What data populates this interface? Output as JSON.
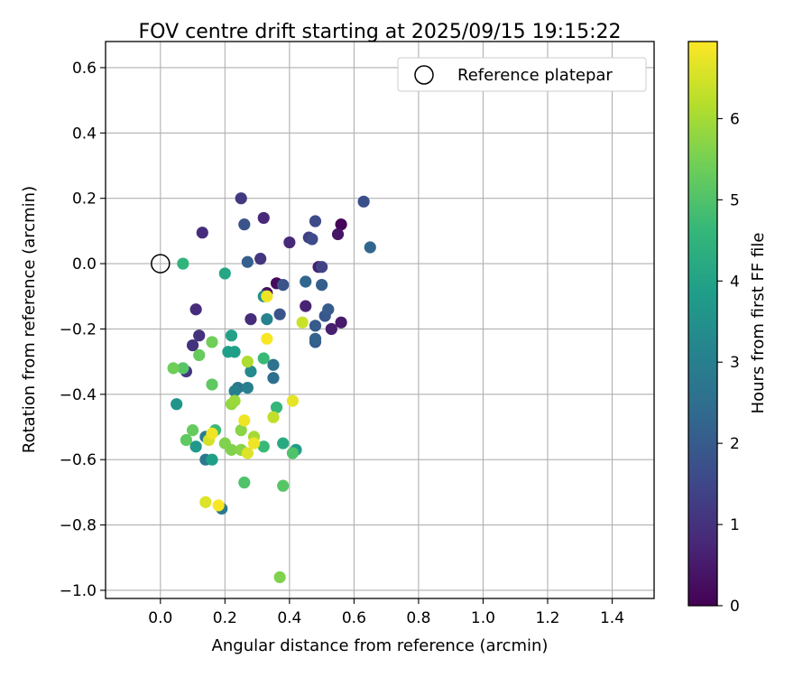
{
  "chart_data": {
    "type": "scatter",
    "title": "FOV centre drift starting at 2025/09/15 19:15:22",
    "xlabel": "Angular distance from reference (arcmin)",
    "ylabel": "Rotation from reference (arcmin)",
    "xlim": [
      -0.17,
      1.53
    ],
    "ylim": [
      -1.025,
      0.68
    ],
    "x_ticks": [
      0.0,
      0.2,
      0.4,
      0.6,
      0.8,
      1.0,
      1.2,
      1.4
    ],
    "x_tick_labels": [
      "0.0",
      "0.2",
      "0.4",
      "0.6",
      "0.8",
      "1.0",
      "1.2",
      "1.4"
    ],
    "y_ticks": [
      0.6,
      0.4,
      0.2,
      0.0,
      -0.2,
      -0.4,
      -0.6,
      -0.8,
      -1.0
    ],
    "y_tick_labels": [
      "0.6",
      "0.4",
      "0.2",
      "0.0",
      "−0.2",
      "−0.4",
      "−0.6",
      "−0.8",
      "−1.0"
    ],
    "grid": true,
    "legend": {
      "placement": "top-right",
      "entries": [
        "Reference platepar"
      ]
    },
    "reference_point": {
      "x": 0.0,
      "y": 0.0,
      "label": "Reference platepar"
    },
    "colorbar": {
      "label": "Hours from first FF file",
      "range": [
        0,
        6.95
      ],
      "ticks": [
        0,
        1,
        2,
        3,
        4,
        5,
        6
      ],
      "tick_labels": [
        "0",
        "1",
        "2",
        "3",
        "4",
        "5",
        "6"
      ],
      "colormap": "viridis"
    },
    "colormap_stops": [
      "#440154",
      "#482878",
      "#3e4989",
      "#31688e",
      "#26828e",
      "#1f9e89",
      "#35b779",
      "#6ece58",
      "#b5de2b",
      "#fde725"
    ],
    "points": [
      {
        "x": 0.56,
        "y": 0.12,
        "h": 0.1
      },
      {
        "x": 0.36,
        "y": -0.06,
        "h": 0.2
      },
      {
        "x": 0.33,
        "y": -0.09,
        "h": 0.3
      },
      {
        "x": 0.55,
        "y": 0.09,
        "h": 0.4
      },
      {
        "x": 0.56,
        "y": -0.18,
        "h": 0.5
      },
      {
        "x": 0.53,
        "y": -0.2,
        "h": 0.6
      },
      {
        "x": 0.49,
        "y": -0.01,
        "h": 0.6
      },
      {
        "x": 0.45,
        "y": -0.13,
        "h": 0.7
      },
      {
        "x": 0.4,
        "y": 0.065,
        "h": 0.8
      },
      {
        "x": 0.32,
        "y": 0.14,
        "h": 0.8
      },
      {
        "x": 0.13,
        "y": 0.095,
        "h": 0.9
      },
      {
        "x": 0.11,
        "y": -0.14,
        "h": 0.9
      },
      {
        "x": 0.28,
        "y": -0.17,
        "h": 0.9
      },
      {
        "x": 0.1,
        "y": -0.25,
        "h": 1.0
      },
      {
        "x": 0.12,
        "y": -0.22,
        "h": 1.0
      },
      {
        "x": 0.08,
        "y": -0.33,
        "h": 1.1
      },
      {
        "x": 0.31,
        "y": 0.015,
        "h": 1.1
      },
      {
        "x": 0.25,
        "y": 0.2,
        "h": 1.2
      },
      {
        "x": 0.46,
        "y": 0.08,
        "h": 1.3
      },
      {
        "x": 0.5,
        "y": -0.01,
        "h": 1.4
      },
      {
        "x": 0.48,
        "y": 0.13,
        "h": 1.6
      },
      {
        "x": 0.47,
        "y": 0.075,
        "h": 1.6
      },
      {
        "x": 0.63,
        "y": 0.19,
        "h": 1.7
      },
      {
        "x": 0.26,
        "y": 0.12,
        "h": 1.8
      },
      {
        "x": 0.38,
        "y": -0.065,
        "h": 1.8
      },
      {
        "x": 0.37,
        "y": -0.155,
        "h": 1.8
      },
      {
        "x": 0.51,
        "y": -0.16,
        "h": 1.9
      },
      {
        "x": 0.52,
        "y": -0.14,
        "h": 2.0
      },
      {
        "x": 0.48,
        "y": -0.19,
        "h": 2.0
      },
      {
        "x": 0.48,
        "y": -0.24,
        "h": 2.0
      },
      {
        "x": 0.27,
        "y": 0.005,
        "h": 2.1
      },
      {
        "x": 0.5,
        "y": -0.065,
        "h": 2.1
      },
      {
        "x": 0.48,
        "y": -0.23,
        "h": 2.2
      },
      {
        "x": 0.65,
        "y": 0.05,
        "h": 2.3
      },
      {
        "x": 0.45,
        "y": -0.055,
        "h": 2.3
      },
      {
        "x": 0.35,
        "y": -0.35,
        "h": 2.5
      },
      {
        "x": 0.35,
        "y": -0.31,
        "h": 2.6
      },
      {
        "x": 0.24,
        "y": -0.38,
        "h": 2.7
      },
      {
        "x": 0.19,
        "y": -0.75,
        "h": 2.8
      },
      {
        "x": 0.14,
        "y": -0.6,
        "h": 2.8
      },
      {
        "x": 0.14,
        "y": -0.53,
        "h": 2.9
      },
      {
        "x": 0.23,
        "y": -0.39,
        "h": 3.0
      },
      {
        "x": 0.27,
        "y": -0.38,
        "h": 3.0
      },
      {
        "x": 0.33,
        "y": -0.17,
        "h": 3.1
      },
      {
        "x": 0.28,
        "y": -0.33,
        "h": 3.3
      },
      {
        "x": 0.32,
        "y": -0.1,
        "h": 3.5
      },
      {
        "x": 0.05,
        "y": -0.43,
        "h": 3.6
      },
      {
        "x": 0.11,
        "y": -0.56,
        "h": 3.7
      },
      {
        "x": 0.42,
        "y": -0.57,
        "h": 3.8
      },
      {
        "x": 0.16,
        "y": -0.6,
        "h": 3.9
      },
      {
        "x": 0.21,
        "y": -0.27,
        "h": 3.9
      },
      {
        "x": 0.23,
        "y": -0.27,
        "h": 3.9
      },
      {
        "x": 0.22,
        "y": -0.22,
        "h": 4.0
      },
      {
        "x": 0.2,
        "y": -0.03,
        "h": 4.1
      },
      {
        "x": 0.38,
        "y": -0.55,
        "h": 4.2
      },
      {
        "x": 0.07,
        "y": 0.0,
        "h": 4.5
      },
      {
        "x": 0.36,
        "y": -0.44,
        "h": 4.6
      },
      {
        "x": 0.17,
        "y": -0.51,
        "h": 4.7
      },
      {
        "x": 0.32,
        "y": -0.29,
        "h": 4.7
      },
      {
        "x": 0.32,
        "y": -0.56,
        "h": 4.7
      },
      {
        "x": 0.41,
        "y": -0.58,
        "h": 5.0
      },
      {
        "x": 0.26,
        "y": -0.67,
        "h": 5.0
      },
      {
        "x": 0.38,
        "y": -0.68,
        "h": 5.1
      },
      {
        "x": 0.07,
        "y": -0.32,
        "h": 5.1
      },
      {
        "x": 0.16,
        "y": -0.37,
        "h": 5.2
      },
      {
        "x": 0.08,
        "y": -0.54,
        "h": 5.2
      },
      {
        "x": 0.1,
        "y": -0.51,
        "h": 5.3
      },
      {
        "x": 0.12,
        "y": -0.28,
        "h": 5.3
      },
      {
        "x": 0.16,
        "y": -0.24,
        "h": 5.4
      },
      {
        "x": 0.04,
        "y": -0.32,
        "h": 5.4
      },
      {
        "x": 0.37,
        "y": -0.96,
        "h": 5.6
      },
      {
        "x": 0.2,
        "y": -0.55,
        "h": 5.6
      },
      {
        "x": 0.22,
        "y": -0.57,
        "h": 5.6
      },
      {
        "x": 0.25,
        "y": -0.57,
        "h": 5.7
      },
      {
        "x": 0.25,
        "y": -0.51,
        "h": 5.7
      },
      {
        "x": 0.22,
        "y": -0.43,
        "h": 5.8
      },
      {
        "x": 0.23,
        "y": -0.42,
        "h": 5.9
      },
      {
        "x": 0.29,
        "y": -0.53,
        "h": 6.0
      },
      {
        "x": 0.27,
        "y": -0.3,
        "h": 6.1
      },
      {
        "x": 0.35,
        "y": -0.47,
        "h": 6.3
      },
      {
        "x": 0.44,
        "y": -0.18,
        "h": 6.4
      },
      {
        "x": 0.15,
        "y": -0.54,
        "h": 6.5
      },
      {
        "x": 0.14,
        "y": -0.73,
        "h": 6.6
      },
      {
        "x": 0.27,
        "y": -0.58,
        "h": 6.6
      },
      {
        "x": 0.41,
        "y": -0.42,
        "h": 6.7
      },
      {
        "x": 0.16,
        "y": -0.52,
        "h": 6.8
      },
      {
        "x": 0.26,
        "y": -0.48,
        "h": 6.8
      },
      {
        "x": 0.29,
        "y": -0.55,
        "h": 6.8
      },
      {
        "x": 0.33,
        "y": -0.1,
        "h": 6.8
      },
      {
        "x": 0.18,
        "y": -0.74,
        "h": 6.9
      },
      {
        "x": 0.33,
        "y": -0.23,
        "h": 6.9
      }
    ]
  }
}
